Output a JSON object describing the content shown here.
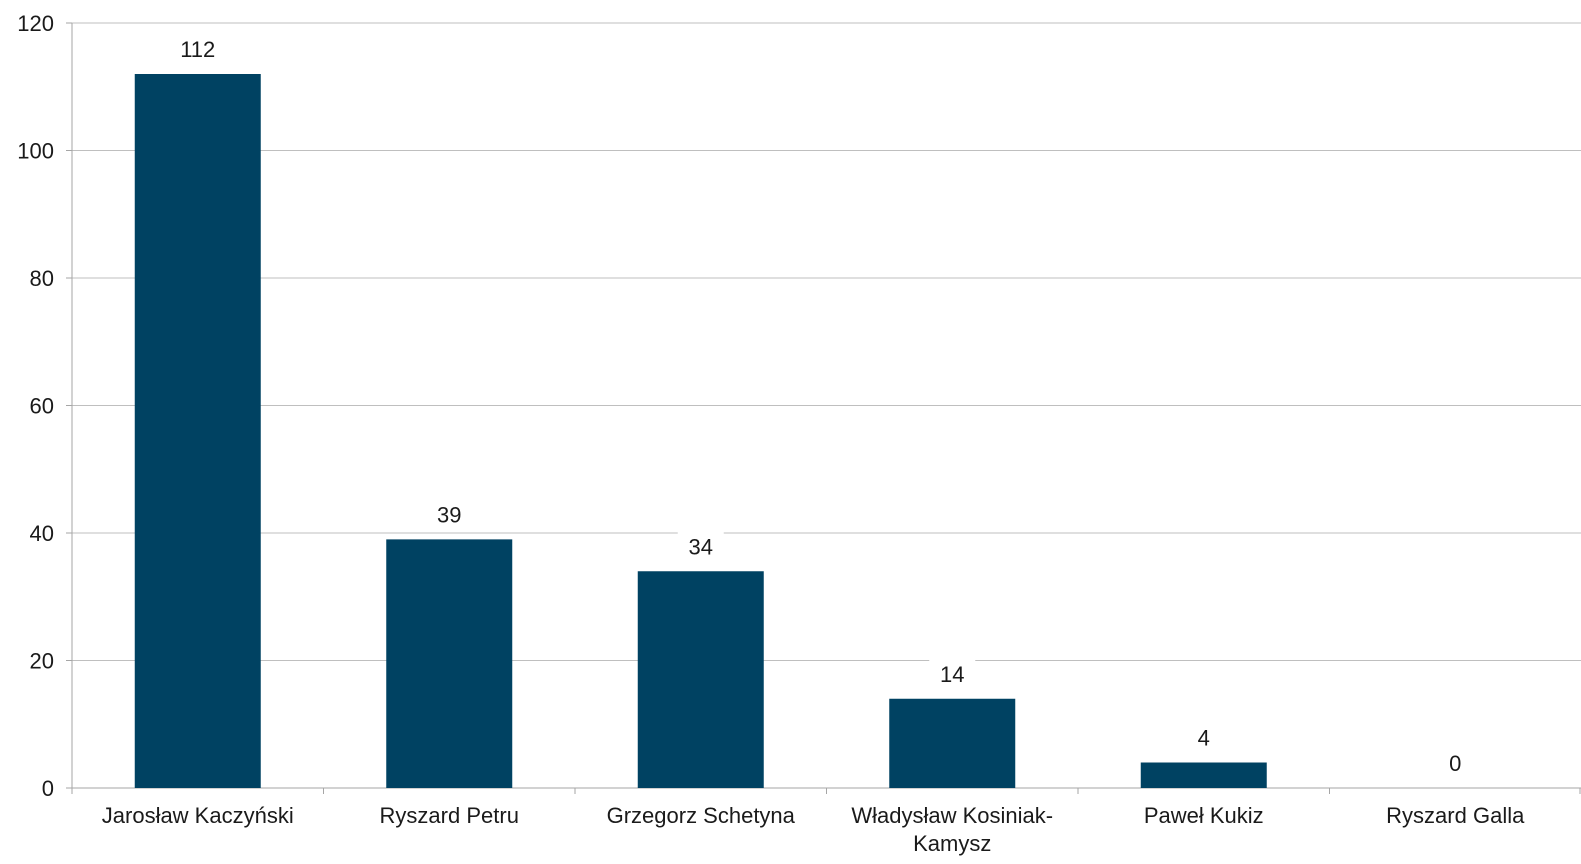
{
  "chart_data": {
    "type": "bar",
    "categories": [
      "Jarosław Kaczyński",
      "Ryszard Petru",
      "Grzegorz Schetyna",
      "Władysław Kosiniak-Kamysz",
      "Paweł Kukiz",
      "Ryszard Galla"
    ],
    "category_label_lines": [
      [
        "Jarosław Kaczyński"
      ],
      [
        "Ryszard Petru"
      ],
      [
        "Grzegorz Schetyna"
      ],
      [
        "Władysław Kosiniak-",
        "Kamysz"
      ],
      [
        "Paweł Kukiz"
      ],
      [
        "Ryszard Galla"
      ]
    ],
    "values": [
      112,
      39,
      34,
      14,
      4,
      0
    ],
    "data_labels": [
      "112",
      "39",
      "34",
      "14",
      "4",
      "0"
    ],
    "yticks": [
      "0",
      "20",
      "40",
      "60",
      "80",
      "100",
      "120"
    ],
    "ylim": [
      0,
      120
    ],
    "title": "",
    "xlabel": "",
    "ylabel": "",
    "grid": true,
    "legend": "none",
    "colors": {
      "bar": "#004262",
      "grid": "#bfbfbf",
      "axis": "#a6a6a6",
      "text": "#1a1a1a"
    }
  }
}
